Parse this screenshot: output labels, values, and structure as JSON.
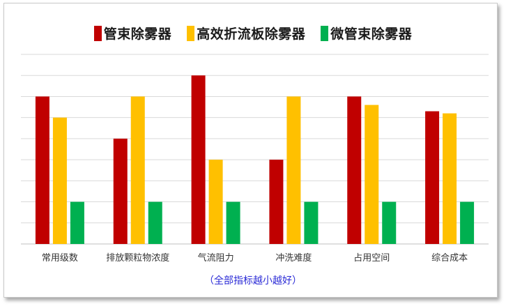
{
  "chart_data": {
    "type": "bar",
    "title": "",
    "xlabel": "",
    "ylabel": "",
    "grid": true,
    "legend_position": "top",
    "ylim": [
      0,
      9
    ],
    "categories": [
      "常用级数",
      "排放颗粒物浓度",
      "气流阻力",
      "冲洗难度",
      "占用空间",
      "综合成本"
    ],
    "series": [
      {
        "name": "管束除雾器",
        "color": "#c00000",
        "values": [
          7,
          5,
          8,
          4,
          7,
          6.3
        ]
      },
      {
        "name": "高效折流板除雾器",
        "color": "#ffc000",
        "values": [
          6,
          7,
          4,
          7,
          6.6,
          6.2
        ]
      },
      {
        "name": "微管束除雾器",
        "color": "#00b050",
        "values": [
          2,
          2,
          2,
          2,
          2,
          2
        ]
      }
    ],
    "annotation": "（全部指标越小越好）"
  }
}
